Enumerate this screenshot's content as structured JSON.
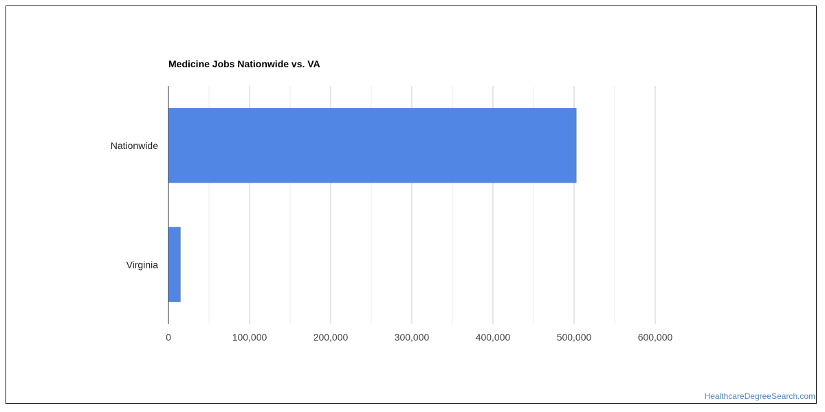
{
  "chart_data": {
    "type": "bar",
    "orientation": "horizontal",
    "title": "Medicine Jobs Nationwide vs. VA",
    "categories": [
      "Nationwide",
      "Virginia"
    ],
    "values": [
      503000,
      15000
    ],
    "xlabel": "",
    "ylabel": "",
    "xlim": [
      0,
      600000
    ],
    "x_ticks": [
      0,
      100000,
      200000,
      300000,
      400000,
      500000,
      600000
    ],
    "x_tick_labels": [
      "0",
      "100,000",
      "200,000",
      "300,000",
      "400,000",
      "500,000",
      "600,000"
    ],
    "grid": true,
    "legend": "none",
    "bar_color": "#5286e4"
  },
  "credit": "HealthcareDegreeSearch.com"
}
